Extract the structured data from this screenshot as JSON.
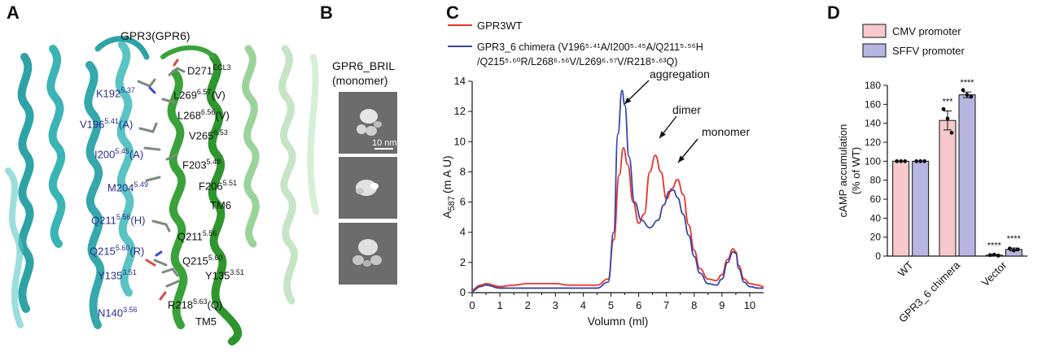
{
  "panels": {
    "a": "A",
    "b": "B",
    "c": "C",
    "d": "D"
  },
  "panel_a": {
    "title": "GPR3(GPR6)",
    "labels_blue": [
      {
        "main": "K192",
        "sup": "5.37",
        "suffix": ""
      },
      {
        "main": "V196",
        "sup": "5.41",
        "suffix": "(A)"
      },
      {
        "main": "I200",
        "sup": "5.45",
        "suffix": "(A)"
      },
      {
        "main": "M204",
        "sup": "5.49",
        "suffix": ""
      },
      {
        "main": "Q211",
        "sup": "5.56",
        "suffix": "(H)"
      },
      {
        "main": "Q215",
        "sup": "5.60",
        "suffix": "(R)"
      },
      {
        "main": "Y135",
        "sup": "3.51",
        "suffix": ""
      },
      {
        "main": "N140",
        "sup": "3.56",
        "suffix": ""
      }
    ],
    "labels_dark": [
      {
        "main": "D271",
        "sup": "ECL3",
        "suffix": ""
      },
      {
        "main": "L269",
        "sup": "6.57",
        "suffix": "(V)"
      },
      {
        "main": "L268",
        "sup": "6.56",
        "suffix": "(V)"
      },
      {
        "main": "V265",
        "sup": "6.53",
        "suffix": ""
      },
      {
        "main": "F203",
        "sup": "5.48",
        "suffix": ""
      },
      {
        "main": "F206",
        "sup": "5.51",
        "suffix": ""
      },
      {
        "main": "TM6",
        "sup": "",
        "suffix": ""
      },
      {
        "main": "Q211",
        "sup": "5.56",
        "suffix": ""
      },
      {
        "main": "Q215",
        "sup": "5.60",
        "suffix": ""
      },
      {
        "main": "Y135",
        "sup": "3.51",
        "suffix": ""
      },
      {
        "main": "R218",
        "sup": "5.63",
        "suffix": "(Q)"
      },
      {
        "main": "TM5",
        "sup": "",
        "suffix": ""
      }
    ]
  },
  "panel_b": {
    "title_line1": "GPR6_BRIL",
    "title_line2": "(monomer)",
    "scalebar": "10 nm"
  },
  "chart_data": [
    {
      "type": "line",
      "xlabel": "Volumn (ml)",
      "ylabel_main": "A",
      "ylabel_sub": "587",
      "ylabel_rest": "(m A U)",
      "xlim": [
        0,
        10.5
      ],
      "ylim": [
        0,
        14
      ],
      "xticks": [
        0,
        1,
        2,
        3,
        4,
        5,
        6,
        7,
        8,
        9,
        10
      ],
      "yticks": [
        0,
        2,
        4,
        6,
        8,
        10,
        12,
        14
      ],
      "legend": "top-right",
      "series": [
        {
          "name": "GPR3WT",
          "color": "#e8342c",
          "x": [
            0,
            0.3,
            0.5,
            1,
            1.5,
            2,
            2.5,
            3,
            3.5,
            4,
            4.5,
            4.9,
            5.1,
            5.3,
            5.45,
            5.6,
            5.8,
            6,
            6.2,
            6.4,
            6.6,
            6.8,
            7,
            7.2,
            7.4,
            7.6,
            7.8,
            8,
            8.2,
            8.5,
            8.8,
            9,
            9.2,
            9.4,
            9.5,
            9.6,
            9.8,
            10,
            10.3,
            10.5
          ],
          "y": [
            0.2,
            0.5,
            0.6,
            0.4,
            0.5,
            0.6,
            0.6,
            0.6,
            0.5,
            0.5,
            0.5,
            0.9,
            3.5,
            7.8,
            9.6,
            8.5,
            6,
            4.6,
            5.2,
            8,
            9.1,
            8,
            6.2,
            6.9,
            7.5,
            6.5,
            4.5,
            2.8,
            1.6,
            0.9,
            0.8,
            1.2,
            2.2,
            2.9,
            2.7,
            1.8,
            0.9,
            0.6,
            0.5,
            0.4
          ]
        },
        {
          "name": "GPR3_6 chimera (V196⁵·⁴¹A/I200⁵·⁴⁵A/Q211⁵·⁵⁶H /Q215⁵·⁶⁰R/L268⁶·⁵⁶V/L269⁶·⁵⁷V/R218⁵·⁶³Q)",
          "color": "#3a47a8",
          "x": [
            0,
            0.3,
            0.5,
            1,
            1.5,
            2,
            2.5,
            3,
            3.5,
            4,
            4.5,
            4.9,
            5.1,
            5.25,
            5.4,
            5.5,
            5.65,
            5.85,
            6.1,
            6.4,
            6.7,
            6.9,
            7.1,
            7.25,
            7.4,
            7.6,
            7.8,
            8,
            8.2,
            8.5,
            8.8,
            9,
            9.2,
            9.4,
            9.5,
            9.6,
            9.8,
            10,
            10.3,
            10.5
          ],
          "y": [
            0.1,
            0.4,
            0.5,
            0.3,
            0.3,
            0.3,
            0.3,
            0.3,
            0.3,
            0.3,
            0.3,
            0.7,
            4,
            10.5,
            13.4,
            12.4,
            9,
            6,
            4.8,
            4.3,
            4.8,
            5.8,
            6.7,
            6.8,
            6.3,
            5.2,
            3.8,
            2.4,
            1.3,
            0.6,
            0.5,
            0.9,
            2,
            2.7,
            2.6,
            1.6,
            0.7,
            0.4,
            0.3,
            0.3
          ]
        }
      ],
      "annotations": [
        {
          "text": "aggregation",
          "x": 5.45,
          "y": 13.4
        },
        {
          "text": "dimer",
          "x": 6.6,
          "y": 9.1
        },
        {
          "text": "monomer",
          "x": 7.25,
          "y": 7.5
        }
      ]
    },
    {
      "type": "bar",
      "ylabel": "cAMP accumulation (% of WT)",
      "ylim": [
        0,
        180
      ],
      "yticks": [
        0,
        20,
        40,
        60,
        80,
        100,
        120,
        140,
        160,
        180
      ],
      "categories": [
        "WT",
        "GPR3_6 chimera",
        "Vector"
      ],
      "legend": "top",
      "series": [
        {
          "name": "CMV promoter",
          "color": "#f7c9cc",
          "values": [
            100,
            143,
            1
          ],
          "errors": [
            0,
            10,
            0.5
          ],
          "points": [
            [
              100,
              100,
              100
            ],
            [
              155,
              145,
              130
            ],
            [
              1,
              1.5,
              0.5
            ]
          ],
          "sig": [
            "",
            "***",
            "****"
          ]
        },
        {
          "name": "SFFV promoter",
          "color": "#b6b6e2",
          "values": [
            100,
            170,
            7
          ],
          "errors": [
            0,
            3,
            1.5
          ],
          "points": [
            [
              100,
              100,
              100
            ],
            [
              175,
              170,
              168
            ],
            [
              8,
              6,
              7
            ]
          ],
          "sig": [
            "",
            "****",
            "****"
          ]
        }
      ]
    }
  ]
}
